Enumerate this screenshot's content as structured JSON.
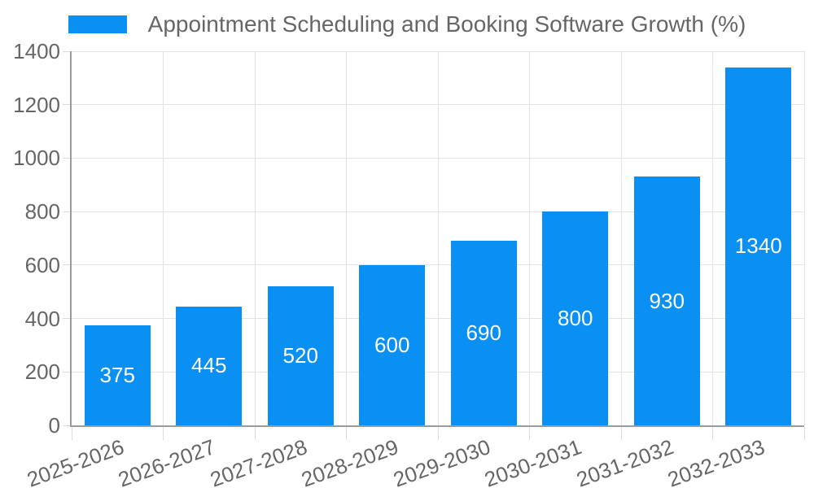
{
  "chart_data": {
    "type": "bar",
    "title": "Appointment Scheduling and Booking Software Growth (%)",
    "legend": {
      "position": "top",
      "label": "Appointment Scheduling and Booking Software Growth (%)"
    },
    "categories": [
      "2025-2026",
      "2026-2027",
      "2027-2028",
      "2028-2029",
      "2029-2030",
      "2030-2031",
      "2031-2032",
      "2032-2033"
    ],
    "values": [
      375,
      445,
      520,
      600,
      690,
      800,
      930,
      1340
    ],
    "xlabel": "",
    "ylabel": "",
    "ylim": [
      0,
      1400
    ],
    "yticks": [
      0,
      200,
      400,
      600,
      800,
      1000,
      1200,
      1400
    ],
    "x_tick_rotation_deg": -20,
    "grid": true,
    "bar_value_labels_inside": true,
    "colors": {
      "bar": "#0a8ff2",
      "bar_value_label": "#ffffff",
      "axis_text": "#666666",
      "gridline": "#e3e3e3",
      "tick_mark": "#dcdcdc",
      "axis_line": "#9b9b9b",
      "background": "#ffffff"
    }
  }
}
